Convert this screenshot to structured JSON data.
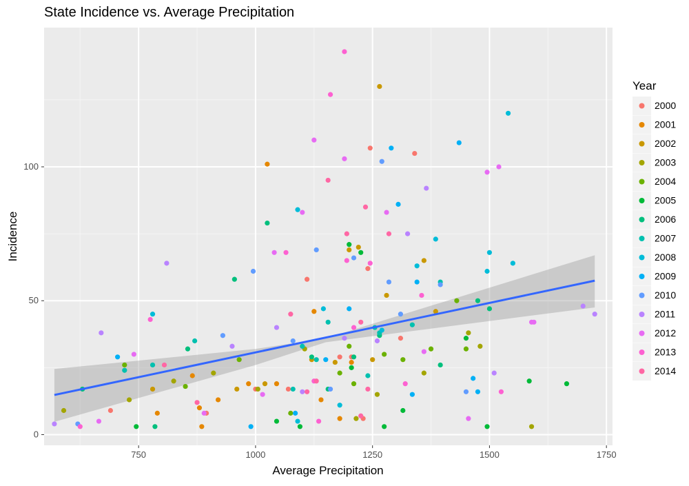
{
  "chart_data": {
    "type": "scatter",
    "title": "State Incidence vs. Average Precipitation",
    "xlabel": "Average Precipitation",
    "ylabel": "Incidence",
    "xlim": [
      548,
      1763
    ],
    "ylim": [
      -4,
      152
    ],
    "x_ticks": [
      750,
      1000,
      1250,
      1500,
      1750
    ],
    "y_ticks": [
      0,
      50,
      100
    ],
    "grid": true,
    "legend": {
      "title": "Year",
      "position": "right"
    },
    "trend": {
      "method": "linear",
      "x0": 570,
      "y0": 14.8,
      "x1": 1725,
      "y1": 57.5,
      "band_low": [
        [
          570,
          4.8
        ],
        [
          1000,
          26.0
        ],
        [
          1150,
          34.5
        ],
        [
          1725,
          47.5
        ]
      ],
      "band_high": [
        [
          570,
          24.5
        ],
        [
          1000,
          32.0
        ],
        [
          1150,
          36.0
        ],
        [
          1725,
          67.0
        ]
      ],
      "line_color": "#3366FF",
      "band_color": "#999999"
    },
    "series": [
      {
        "name": "2000",
        "color": "#F8766D",
        "points": [
          [
            690,
            9
          ],
          [
            895,
            8
          ],
          [
            1000,
            17
          ],
          [
            1110,
            58
          ],
          [
            1205,
            29
          ],
          [
            1245,
            107
          ],
          [
            1310,
            36
          ],
          [
            1340,
            105
          ],
          [
            1240,
            62
          ],
          [
            1230,
            6
          ],
          [
            1180,
            29
          ],
          [
            1070,
            17
          ]
        ]
      },
      {
        "name": "2001",
        "color": "#E58700",
        "points": [
          [
            865,
            22
          ],
          [
            885,
            3
          ],
          [
            1025,
            101
          ],
          [
            1045,
            19
          ],
          [
            1125,
            46
          ],
          [
            1180,
            6
          ],
          [
            1205,
            27
          ],
          [
            790,
            8
          ],
          [
            985,
            19
          ],
          [
            920,
            13
          ],
          [
            1140,
            13
          ],
          [
            880,
            10
          ]
        ]
      },
      {
        "name": "2002",
        "color": "#C99800",
        "points": [
          [
            1265,
            130
          ],
          [
            1200,
            69
          ],
          [
            1220,
            70
          ],
          [
            1280,
            52
          ],
          [
            1360,
            65
          ],
          [
            1385,
            46
          ],
          [
            1250,
            28
          ],
          [
            1170,
            27
          ],
          [
            1120,
            28
          ],
          [
            1020,
            19
          ],
          [
            960,
            17
          ],
          [
            780,
            17
          ]
        ]
      },
      {
        "name": "2003",
        "color": "#A3A500",
        "points": [
          [
            590,
            9
          ],
          [
            730,
            13
          ],
          [
            825,
            20
          ],
          [
            910,
            23
          ],
          [
            1005,
            17
          ],
          [
            1105,
            32
          ],
          [
            1215,
            6
          ],
          [
            1260,
            15
          ],
          [
            1360,
            23
          ],
          [
            1480,
            33
          ],
          [
            1590,
            3
          ],
          [
            1455,
            38
          ]
        ]
      },
      {
        "name": "2004",
        "color": "#6BB100",
        "points": [
          [
            720,
            26
          ],
          [
            850,
            18
          ],
          [
            965,
            28
          ],
          [
            1075,
            8
          ],
          [
            1180,
            23
          ],
          [
            1200,
            33
          ],
          [
            1275,
            30
          ],
          [
            1375,
            32
          ],
          [
            1450,
            32
          ],
          [
            1430,
            50
          ],
          [
            1210,
            19
          ],
          [
            1315,
            28
          ]
        ]
      },
      {
        "name": "2005",
        "color": "#00BA38",
        "points": [
          [
            745,
            3
          ],
          [
            1045,
            5
          ],
          [
            1095,
            3
          ],
          [
            1200,
            71
          ],
          [
            1225,
            68
          ],
          [
            1275,
            3
          ],
          [
            1315,
            9
          ],
          [
            1450,
            36
          ],
          [
            1495,
            3
          ],
          [
            1585,
            20
          ],
          [
            1665,
            19
          ],
          [
            1205,
            25
          ]
        ]
      },
      {
        "name": "2006",
        "color": "#00BF7D",
        "points": [
          [
            630,
            17
          ],
          [
            785,
            3
          ],
          [
            855,
            32
          ],
          [
            955,
            58
          ],
          [
            1025,
            79
          ],
          [
            1120,
            29
          ],
          [
            1210,
            29
          ],
          [
            1265,
            37
          ],
          [
            1395,
            26
          ],
          [
            1475,
            50
          ],
          [
            1500,
            47
          ],
          [
            1155,
            17
          ]
        ]
      },
      {
        "name": "2007",
        "color": "#00C0AF",
        "points": [
          [
            720,
            24
          ],
          [
            780,
            26
          ],
          [
            870,
            35
          ],
          [
            1130,
            28
          ],
          [
            1155,
            42
          ],
          [
            1255,
            40
          ],
          [
            1265,
            38
          ],
          [
            1335,
            41
          ],
          [
            1395,
            57
          ],
          [
            1100,
            33
          ],
          [
            1240,
            22
          ],
          [
            1080,
            17
          ]
        ]
      },
      {
        "name": "2008",
        "color": "#00BCD8",
        "points": [
          [
            780,
            45
          ],
          [
            1090,
            84
          ],
          [
            1145,
            47
          ],
          [
            1270,
            39
          ],
          [
            1345,
            63
          ],
          [
            1385,
            73
          ],
          [
            1495,
            61
          ],
          [
            1500,
            68
          ],
          [
            1540,
            120
          ],
          [
            1550,
            64
          ],
          [
            1180,
            11
          ],
          [
            1090,
            5
          ]
        ]
      },
      {
        "name": "2009",
        "color": "#00B0F6",
        "points": [
          [
            705,
            29
          ],
          [
            990,
            3
          ],
          [
            1085,
            8
          ],
          [
            1150,
            28
          ],
          [
            1200,
            47
          ],
          [
            1290,
            107
          ],
          [
            1305,
            86
          ],
          [
            1345,
            57
          ],
          [
            1435,
            109
          ],
          [
            1465,
            21
          ],
          [
            1475,
            16
          ],
          [
            1335,
            15
          ]
        ]
      },
      {
        "name": "2010",
        "color": "#619CFF",
        "points": [
          [
            620,
            4
          ],
          [
            930,
            37
          ],
          [
            995,
            61
          ],
          [
            1080,
            35
          ],
          [
            1130,
            69
          ],
          [
            1210,
            66
          ],
          [
            1270,
            102
          ],
          [
            1285,
            57
          ],
          [
            1310,
            45
          ],
          [
            1395,
            56
          ],
          [
            1450,
            16
          ],
          [
            1160,
            17
          ]
        ]
      },
      {
        "name": "2011",
        "color": "#B983FF",
        "points": [
          [
            570,
            4
          ],
          [
            670,
            38
          ],
          [
            810,
            64
          ],
          [
            950,
            33
          ],
          [
            1045,
            40
          ],
          [
            1100,
            16
          ],
          [
            1190,
            36
          ],
          [
            1260,
            35
          ],
          [
            1325,
            75
          ],
          [
            1365,
            92
          ],
          [
            1510,
            23
          ],
          [
            1700,
            48
          ],
          [
            1725,
            45
          ]
        ]
      },
      {
        "name": "2012",
        "color": "#E76BF3",
        "points": [
          [
            665,
            5
          ],
          [
            740,
            30
          ],
          [
            890,
            8
          ],
          [
            1015,
            15
          ],
          [
            1040,
            68
          ],
          [
            1100,
            83
          ],
          [
            1125,
            110
          ],
          [
            1190,
            103
          ],
          [
            1280,
            83
          ],
          [
            1360,
            31
          ],
          [
            1455,
            6
          ],
          [
            1495,
            98
          ],
          [
            1520,
            100
          ],
          [
            1595,
            42
          ],
          [
            1590,
            42
          ]
        ]
      },
      {
        "name": "2013",
        "color": "#FD61D1",
        "points": [
          [
            625,
            3
          ],
          [
            775,
            43
          ],
          [
            1065,
            68
          ],
          [
            1125,
            20
          ],
          [
            1160,
            127
          ],
          [
            1190,
            143
          ],
          [
            1195,
            65
          ],
          [
            1210,
            40
          ],
          [
            1245,
            64
          ],
          [
            1320,
            19
          ],
          [
            1355,
            52
          ],
          [
            1525,
            16
          ],
          [
            1135,
            5
          ]
        ]
      },
      {
        "name": "2014",
        "color": "#FF67A4",
        "points": [
          [
            805,
            26
          ],
          [
            875,
            12
          ],
          [
            1075,
            45
          ],
          [
            1110,
            16
          ],
          [
            1130,
            20
          ],
          [
            1155,
            95
          ],
          [
            1195,
            75
          ],
          [
            1225,
            42
          ],
          [
            1235,
            85
          ],
          [
            1240,
            17
          ],
          [
            1285,
            75
          ],
          [
            1225,
            7
          ]
        ]
      }
    ]
  }
}
